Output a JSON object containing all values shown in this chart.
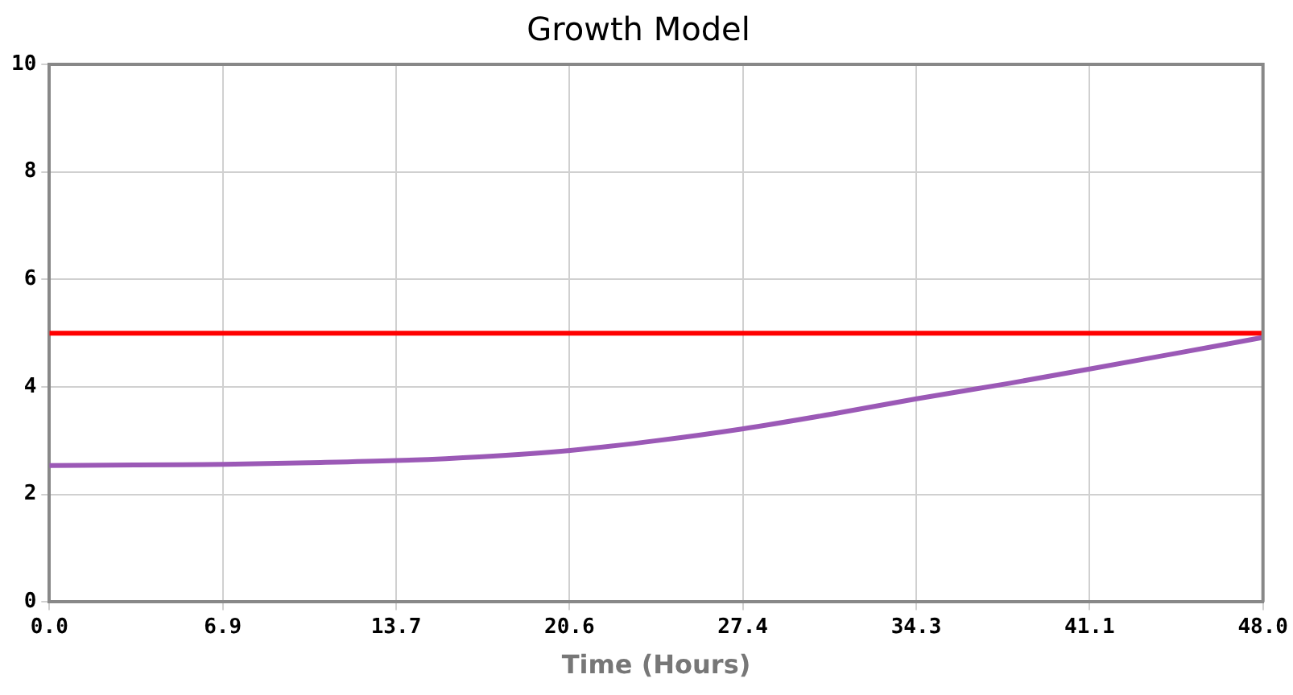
{
  "chart_data": {
    "type": "line",
    "title": "Growth Model",
    "xlabel": "Time (Hours)",
    "xlim": [
      0,
      48
    ],
    "xticks": [
      {
        "value": 0,
        "label": "0.0"
      },
      {
        "value": 6.857,
        "label": "6.9"
      },
      {
        "value": 13.714,
        "label": "13.7"
      },
      {
        "value": 20.571,
        "label": "20.6"
      },
      {
        "value": 27.429,
        "label": "27.4"
      },
      {
        "value": 34.286,
        "label": "34.3"
      },
      {
        "value": 41.143,
        "label": "41.1"
      },
      {
        "value": 48,
        "label": "48.0"
      }
    ],
    "ylim": [
      0,
      10
    ],
    "yticks": [
      0,
      2,
      4,
      6,
      8,
      10
    ],
    "grid": true,
    "marker": "none",
    "line_style": "solid",
    "series": [
      {
        "color": "#9b59b6",
        "x": [
          0,
          3.4,
          6.9,
          10.3,
          13.7,
          17,
          20.6,
          24,
          27.4,
          31,
          34.3,
          38,
          41.1,
          44.5,
          48
        ],
        "values": [
          2.54,
          2.55,
          2.56,
          2.59,
          2.63,
          2.7,
          2.82,
          3.0,
          3.22,
          3.5,
          3.78,
          4.07,
          4.33,
          4.62,
          4.92
        ]
      },
      {
        "color": "#ff0000",
        "x": [
          0,
          48
        ],
        "values": [
          5,
          5
        ]
      }
    ]
  }
}
